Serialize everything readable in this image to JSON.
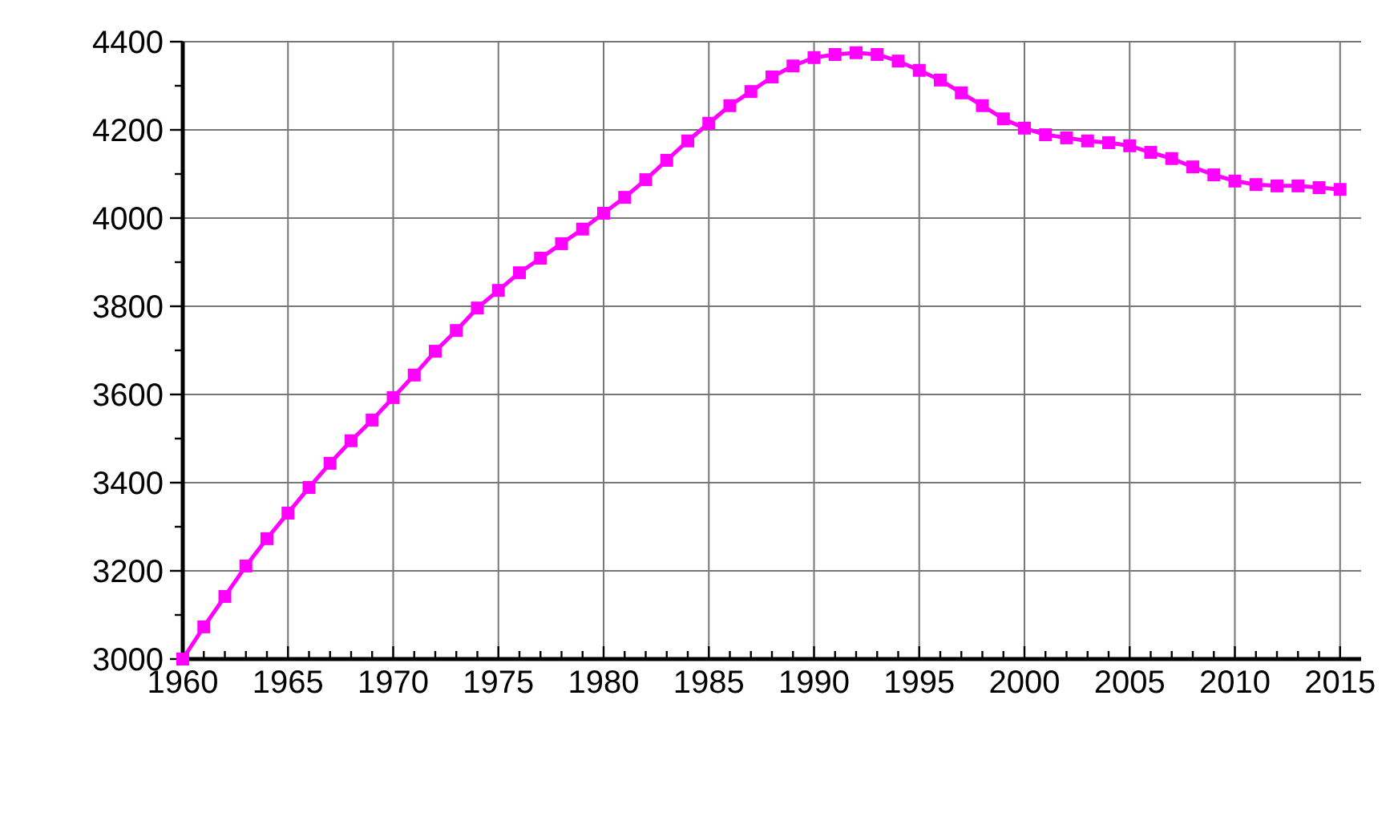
{
  "chart_data": {
    "type": "line",
    "x": [
      1960,
      1961,
      1962,
      1963,
      1964,
      1965,
      1966,
      1967,
      1968,
      1969,
      1970,
      1971,
      1972,
      1973,
      1974,
      1975,
      1976,
      1977,
      1978,
      1979,
      1980,
      1981,
      1982,
      1983,
      1984,
      1985,
      1986,
      1987,
      1988,
      1989,
      1990,
      1991,
      1992,
      1993,
      1994,
      1995,
      1996,
      1997,
      1998,
      1999,
      2000,
      2001,
      2002,
      2003,
      2004,
      2005,
      2006,
      2007,
      2008,
      2009,
      2010,
      2011,
      2012,
      2013,
      2014,
      2015
    ],
    "series": [
      {
        "color": "#ff00ff",
        "values": [
          3000,
          3073,
          3142,
          3211,
          3273,
          3331,
          3389,
          3444,
          3495,
          3542,
          3593,
          3644,
          3698,
          3745,
          3796,
          3836,
          3876,
          3909,
          3942,
          3975,
          4011,
          4047,
          4087,
          4131,
          4175,
          4215,
          4255,
          4287,
          4320,
          4345,
          4364,
          4371,
          4375,
          4371,
          4356,
          4335,
          4313,
          4284,
          4255,
          4225,
          4204,
          4189,
          4182,
          4175,
          4171,
          4164,
          4149,
          4135,
          4116,
          4098,
          4084,
          4076,
          4073,
          4073,
          4069,
          4065
        ]
      }
    ],
    "xlim": [
      1960,
      2016
    ],
    "xticks": [
      1960,
      {
        "value": 1961,
        "label": null
      },
      {
        "value": 1962,
        "label": null
      },
      {
        "value": 1963,
        "label": null
      },
      {
        "value": 1964,
        "label": null
      },
      1965,
      {
        "value": 1966,
        "label": null
      },
      {
        "value": 1967,
        "label": null
      },
      {
        "value": 1968,
        "label": null
      },
      {
        "value": 1969,
        "label": null
      },
      1970,
      {
        "value": 1971,
        "label": null
      },
      {
        "value": 1972,
        "label": null
      },
      {
        "value": 1973,
        "label": null
      },
      {
        "value": 1974,
        "label": null
      },
      1975,
      {
        "value": 1976,
        "label": null
      },
      {
        "value": 1977,
        "label": null
      },
      {
        "value": 1978,
        "label": null
      },
      {
        "value": 1979,
        "label": null
      },
      1980,
      {
        "value": 1981,
        "label": null
      },
      {
        "value": 1982,
        "label": null
      },
      {
        "value": 1983,
        "label": null
      },
      {
        "value": 1984,
        "label": null
      },
      1985,
      {
        "value": 1986,
        "label": null
      },
      {
        "value": 1987,
        "label": null
      },
      {
        "value": 1988,
        "label": null
      },
      {
        "value": 1989,
        "label": null
      },
      1990,
      {
        "value": 1991,
        "label": null
      },
      {
        "value": 1992,
        "label": null
      },
      {
        "value": 1993,
        "label": null
      },
      {
        "value": 1994,
        "label": null
      },
      1995,
      {
        "value": 1996,
        "label": null
      },
      {
        "value": 1997,
        "label": null
      },
      {
        "value": 1998,
        "label": null
      },
      {
        "value": 1999,
        "label": null
      },
      2000,
      {
        "value": 2001,
        "label": null
      },
      {
        "value": 2002,
        "label": null
      },
      {
        "value": 2003,
        "label": null
      },
      {
        "value": 2004,
        "label": null
      },
      2005,
      {
        "value": 2006,
        "label": null
      },
      {
        "value": 2007,
        "label": null
      },
      {
        "value": 2008,
        "label": null
      },
      {
        "value": 2009,
        "label": null
      },
      2010,
      {
        "value": 2011,
        "label": null
      },
      {
        "value": 2012,
        "label": null
      },
      {
        "value": 2013,
        "label": null
      },
      {
        "value": 2014,
        "label": null
      },
      2015
    ],
    "ylim": [
      3000,
      4400
    ],
    "yticks": [
      3000,
      {
        "value": 3100,
        "label": null
      },
      3200,
      {
        "value": 3300,
        "label": null
      },
      3400,
      {
        "value": 3500,
        "label": null
      },
      3600,
      {
        "value": 3700,
        "label": null
      },
      3800,
      {
        "value": 3900,
        "label": null
      },
      4000,
      {
        "value": 4100,
        "label": null
      },
      4200,
      {
        "value": 4300,
        "label": null
      },
      4400
    ],
    "grid": true,
    "marker": "square",
    "line_style": "solid"
  }
}
